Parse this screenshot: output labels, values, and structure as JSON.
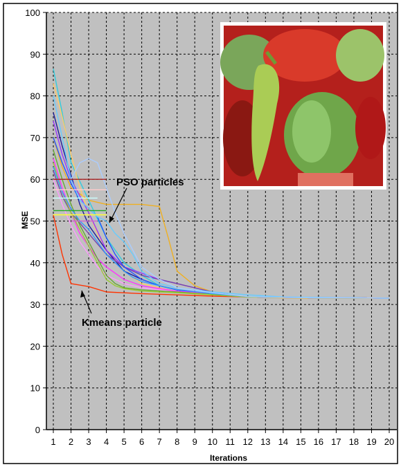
{
  "chart_data": {
    "type": "line",
    "xlabel": "Iterations",
    "ylabel": "MSE",
    "xlim": [
      1,
      20
    ],
    "ylim": [
      0,
      100
    ],
    "x_ticks": [
      1,
      2,
      3,
      4,
      5,
      6,
      7,
      8,
      9,
      10,
      11,
      12,
      13,
      14,
      15,
      16,
      17,
      18,
      19,
      20
    ],
    "y_ticks": [
      0,
      10,
      20,
      30,
      40,
      50,
      60,
      70,
      80,
      90,
      100
    ],
    "grid": true,
    "annotations": [
      {
        "text": "PSO particles"
      },
      {
        "text": "Kmeans particle"
      }
    ],
    "inset_image": "peppers-image",
    "series": [
      {
        "color": "#ff3300",
        "x": [
          1,
          1.5,
          2,
          3,
          4,
          5,
          6,
          8,
          10,
          12,
          14,
          16,
          18,
          20
        ],
        "y": [
          51.5,
          42,
          35,
          34.3,
          33,
          32.8,
          32.6,
          32.3,
          32,
          31.8,
          31.7,
          31.6,
          31.6,
          31.5
        ]
      },
      {
        "color": "#f0b020",
        "x": [
          1,
          1.5,
          2,
          3,
          4,
          5,
          6,
          7,
          7.5,
          8,
          9,
          10,
          11,
          12,
          14,
          16,
          18,
          20
        ],
        "y": [
          70,
          63,
          58,
          55,
          54,
          54,
          54,
          53.5,
          46,
          38,
          34.5,
          33,
          32.3,
          31.8,
          31.6,
          31.5,
          31.5,
          31.5
        ]
      },
      {
        "color": "#33ccdd",
        "x": [
          1,
          1.5,
          2,
          3,
          4,
          5,
          6,
          7,
          8,
          9,
          10,
          12,
          14,
          16,
          18,
          20
        ],
        "y": [
          86.5,
          76,
          64,
          55,
          46,
          40,
          37,
          34.5,
          33.5,
          32.8,
          32.3,
          31.8,
          31.7,
          31.6,
          31.6,
          31.5
        ]
      },
      {
        "color": "#ffcc66",
        "x": [
          1,
          1.5,
          2,
          2.5,
          3,
          3.5,
          4,
          5,
          6,
          7,
          8,
          10,
          12,
          14,
          16,
          18,
          20
        ],
        "y": [
          83,
          75,
          66,
          58,
          52,
          47,
          43,
          38,
          35,
          34,
          33,
          32.4,
          31.8,
          31.7,
          31.6,
          31.6,
          31.5
        ]
      },
      {
        "color": "#1a1a99",
        "x": [
          1,
          1.5,
          2,
          2.5,
          3,
          3.5,
          4,
          5,
          6,
          7,
          8,
          10,
          12,
          14,
          16,
          18,
          20
        ],
        "y": [
          76,
          68,
          61,
          54,
          49,
          46,
          43,
          38,
          36,
          34.5,
          33.5,
          32.5,
          31.8,
          31.7,
          31.6,
          31.6,
          31.5
        ]
      },
      {
        "color": "#9933ff",
        "x": [
          1,
          1.5,
          2,
          3,
          4,
          5,
          6,
          7,
          8,
          9,
          10,
          11,
          12,
          14,
          16,
          18,
          20
        ],
        "y": [
          74,
          66,
          60,
          52,
          43,
          39,
          37.5,
          36,
          35,
          34,
          33,
          32.3,
          31.8,
          31.7,
          31.6,
          31.6,
          31.5
        ]
      },
      {
        "color": "#7744aa",
        "x": [
          1,
          1.5,
          2,
          3,
          4,
          5,
          6,
          7,
          8,
          9,
          10,
          11,
          12,
          14,
          16,
          18,
          20
        ],
        "y": [
          62,
          56,
          52,
          47,
          42,
          39,
          37,
          36,
          35,
          34,
          33,
          32.3,
          31.8,
          31.7,
          31.6,
          31.6,
          31.5
        ]
      },
      {
        "color": "#2255ff",
        "x": [
          1,
          1.5,
          2,
          2.5,
          3,
          3.5,
          4,
          4.5,
          5,
          6,
          7,
          8,
          10,
          12,
          14,
          16,
          18,
          20
        ],
        "y": [
          70,
          64,
          59,
          55,
          53,
          51,
          46,
          42,
          39,
          36,
          34.5,
          33.5,
          32.3,
          31.8,
          31.7,
          31.6,
          31.6,
          31.5
        ]
      },
      {
        "color": "#ff33ff",
        "x": [
          1,
          1.5,
          2,
          2.5,
          3,
          3.5,
          4,
          5,
          6,
          7,
          8,
          10,
          12,
          14,
          16,
          18,
          20
        ],
        "y": [
          65,
          58,
          52,
          47,
          44,
          41,
          39,
          36,
          34.5,
          33.8,
          33.2,
          32.5,
          31.8,
          31.7,
          31.6,
          31.6,
          31.5
        ]
      },
      {
        "color": "#ff99ff",
        "x": [
          1,
          1.5,
          2,
          2.5,
          3,
          3.5,
          4,
          5,
          6,
          7,
          8,
          10,
          12,
          14,
          16,
          18,
          20
        ],
        "y": [
          60,
          54,
          49,
          45,
          42,
          39,
          37,
          35,
          34,
          33.5,
          33,
          32.4,
          31.8,
          31.7,
          31.6,
          31.6,
          31.5
        ]
      },
      {
        "color": "#66aa33",
        "x": [
          1,
          1.5,
          2,
          2.5,
          3,
          3.5,
          4,
          4.5,
          5,
          6,
          8,
          10,
          12,
          14,
          16,
          18,
          20
        ],
        "y": [
          67,
          60,
          54,
          49,
          45,
          41,
          37,
          35,
          34,
          33.5,
          33,
          32.4,
          31.8,
          31.7,
          31.6,
          31.6,
          31.5
        ]
      },
      {
        "color": "#99cc33",
        "x": [
          1,
          1.5,
          2,
          2.5,
          3,
          3.5,
          4,
          4.5,
          5,
          6,
          8,
          10,
          12,
          14,
          16,
          18,
          20
        ],
        "y": [
          64,
          57,
          52,
          48,
          44,
          40,
          36,
          34.5,
          33.8,
          33.2,
          32.8,
          32.3,
          31.8,
          31.7,
          31.6,
          31.6,
          31.5
        ]
      },
      {
        "color": "#66ccff",
        "x": [
          1,
          1.5,
          2,
          2.5,
          3,
          3.5,
          4,
          4.5,
          5,
          5.5,
          6,
          7,
          8,
          10,
          12,
          14,
          16,
          18,
          20
        ],
        "y": [
          80,
          70,
          60,
          55,
          53,
          51,
          50,
          47,
          45,
          42,
          38,
          35,
          34,
          33,
          32.3,
          31.8,
          31.7,
          31.6,
          31.5
        ]
      },
      {
        "color": "#3399ff",
        "x": [
          1,
          1.5,
          2,
          2.5,
          3,
          3.5,
          4,
          4.5,
          5,
          5.5,
          6,
          7,
          8,
          10,
          12,
          14,
          16,
          18,
          20
        ],
        "y": [
          63,
          57,
          53,
          50,
          48,
          45,
          42,
          40,
          38,
          36.5,
          35.5,
          34.5,
          33.6,
          32.6,
          31.9,
          31.7,
          31.6,
          31.6,
          31.5
        ]
      },
      {
        "color": "#aaccff",
        "x": [
          2,
          2.5,
          3,
          3.5,
          4,
          4.5,
          5,
          5.5,
          6,
          7,
          8,
          10,
          12,
          14,
          16,
          18,
          20
        ],
        "y": [
          60,
          64,
          65,
          64,
          58,
          52,
          47,
          43,
          39,
          36,
          34,
          32.8,
          31.9,
          31.7,
          31.6,
          31.6,
          31.5
        ]
      },
      {
        "color": "#ffcccc",
        "x": [
          1,
          1.5,
          2,
          2.5,
          3,
          3.5,
          4
        ],
        "y": [
          57.5,
          57.5,
          57.5,
          57.5,
          57.5,
          57.5,
          57.5
        ]
      },
      {
        "color": "#ccffff",
        "x": [
          1,
          1.5,
          2,
          2.5,
          3,
          3.5
        ],
        "y": [
          55.5,
          55.5,
          55.5,
          55.5,
          55.5,
          55.5
        ]
      },
      {
        "color": "#aa2222",
        "x": [
          1,
          1.5,
          2,
          2.5,
          3,
          3.5,
          4
        ],
        "y": [
          60,
          60,
          60,
          60,
          60,
          60,
          60
        ]
      },
      {
        "color": "#22aa22",
        "x": [
          1,
          1.5,
          2,
          2.5,
          3,
          3.5,
          4
        ],
        "y": [
          52.5,
          52.5,
          52.5,
          52.5,
          52.5,
          52.5,
          52.5
        ]
      },
      {
        "color": "#ffff33",
        "x": [
          1,
          1.5,
          2,
          2.5,
          3,
          3.5,
          4
        ],
        "y": [
          51.5,
          51.5,
          51.5,
          51.5,
          51.5,
          51.5,
          51.5
        ]
      },
      {
        "color": "#cc66cc",
        "x": [
          2,
          2.5,
          3,
          3.5
        ],
        "y": [
          50,
          50,
          50,
          50
        ]
      }
    ]
  }
}
